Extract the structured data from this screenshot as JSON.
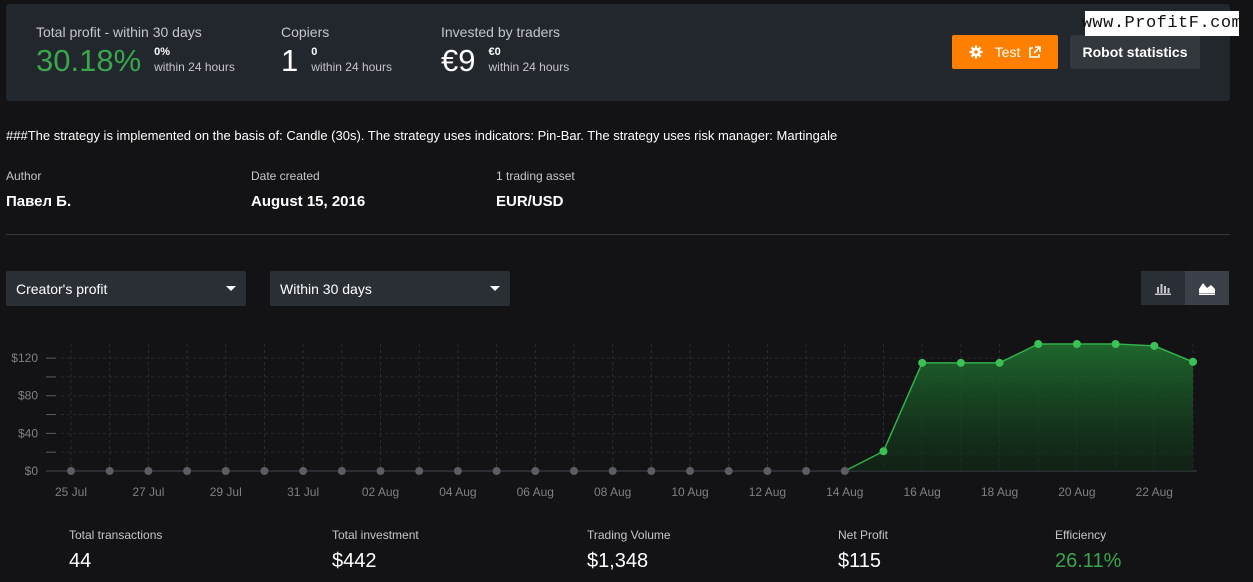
{
  "header": {
    "total_profit": {
      "label": "Total profit - within 30 days",
      "value": "30.18%",
      "sub_value": "0%",
      "sub_label": "within 24 hours"
    },
    "copiers": {
      "label": "Copiers",
      "value": "1",
      "sub_value": "0",
      "sub_label": "within 24 hours"
    },
    "invested": {
      "label": "Invested by traders",
      "value": "€9",
      "sub_value": "€0",
      "sub_label": "within 24 hours"
    },
    "test_button": "Test",
    "robot_stats_button": "Robot statistics",
    "watermark": "www.ProfitF.com"
  },
  "description": "###The strategy is implemented on the basis of: Candle (30s). The strategy uses indicators: Pin-Bar. The strategy uses risk manager: Martingale",
  "meta": {
    "author": {
      "label": "Author",
      "value": "Павел Б."
    },
    "date_created": {
      "label": "Date created",
      "value": "August 15, 2016"
    },
    "assets": {
      "label": "1 trading asset",
      "value": "EUR/USD"
    }
  },
  "filters": {
    "metric_select": "Creator's profit",
    "period_select": "Within 30 days"
  },
  "view_toggle": {
    "active": "area-chart-icon",
    "options": [
      "bar-chart-icon",
      "area-chart-icon"
    ]
  },
  "chart_data": {
    "type": "area",
    "x": [
      "25 Jul",
      "26 Jul",
      "27 Jul",
      "28 Jul",
      "29 Jul",
      "30 Jul",
      "31 Jul",
      "01 Aug",
      "02 Aug",
      "03 Aug",
      "04 Aug",
      "05 Aug",
      "06 Aug",
      "07 Aug",
      "08 Aug",
      "09 Aug",
      "10 Aug",
      "11 Aug",
      "12 Aug",
      "13 Aug",
      "14 Aug",
      "15 Aug",
      "16 Aug",
      "17 Aug",
      "18 Aug",
      "19 Aug",
      "20 Aug",
      "21 Aug",
      "22 Aug",
      "23 Aug"
    ],
    "x_tick_labels": [
      "25 Jul",
      "27 Jul",
      "29 Jul",
      "31 Jul",
      "02 Aug",
      "04 Aug",
      "06 Aug",
      "08 Aug",
      "10 Aug",
      "12 Aug",
      "14 Aug",
      "16 Aug",
      "18 Aug",
      "20 Aug",
      "22 Aug"
    ],
    "values": [
      0,
      0,
      0,
      0,
      0,
      0,
      0,
      0,
      0,
      0,
      0,
      0,
      0,
      0,
      0,
      0,
      0,
      0,
      0,
      0,
      0,
      21,
      115,
      115,
      115,
      135,
      135,
      135,
      133,
      116
    ],
    "y_ticks": [
      0,
      40,
      80,
      120
    ],
    "y_tick_labels": [
      "$0",
      "$40",
      "$80",
      "$120"
    ],
    "ylim": [
      0,
      135
    ],
    "colors": {
      "line": "#33b04a",
      "point_active": "#3cc157",
      "point_zero": "#5a5d63",
      "fill": "#1f6b2e"
    }
  },
  "totals": {
    "transactions": {
      "label": "Total transactions",
      "value": "44"
    },
    "investment": {
      "label": "Total investment",
      "value": "$442"
    },
    "volume": {
      "label": "Trading Volume",
      "value": "$1,348"
    },
    "net_profit": {
      "label": "Net Profit",
      "value": "$115"
    },
    "efficiency": {
      "label": "Efficiency",
      "value": "26.11%"
    }
  }
}
